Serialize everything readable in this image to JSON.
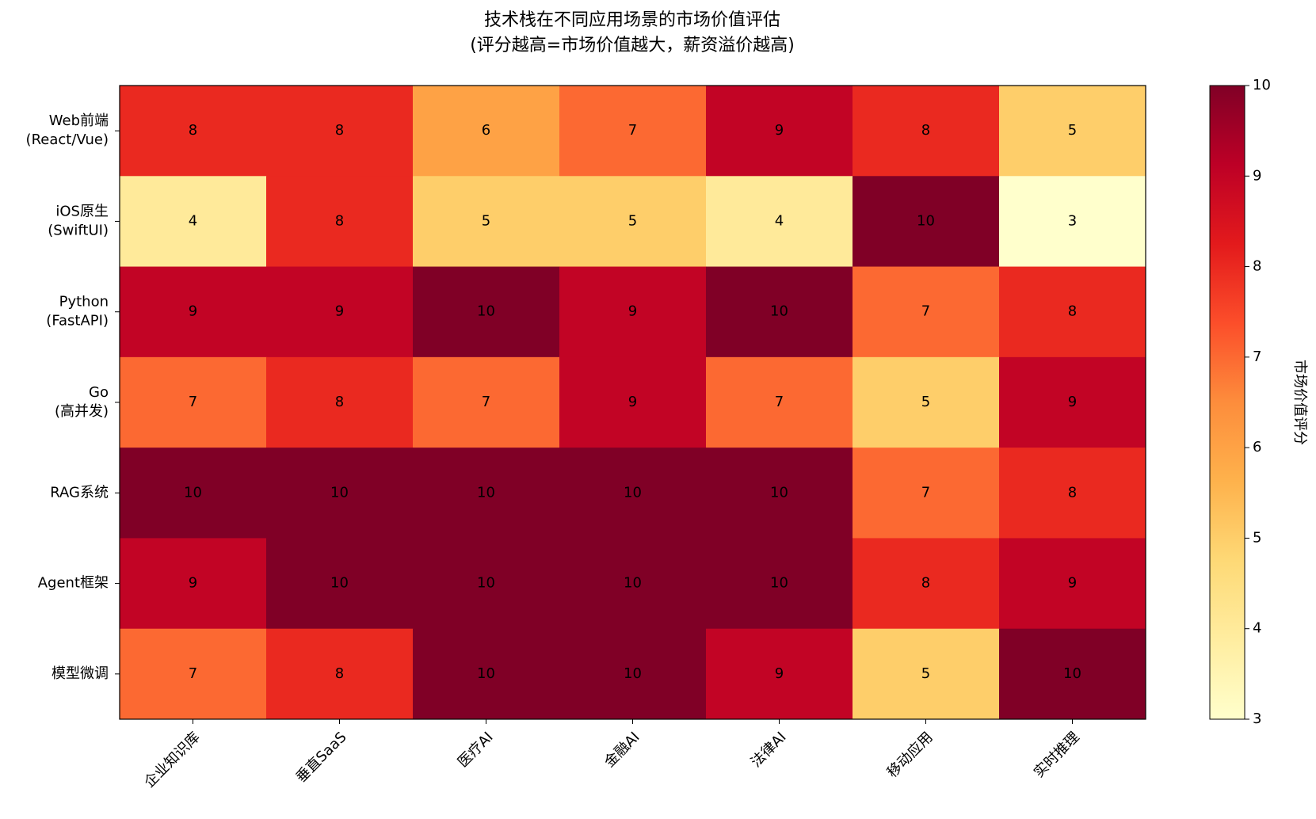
{
  "chart_data": {
    "type": "heatmap",
    "title": "技术栈在不同应用场景的市场价值评估",
    "subtitle": "(评分越高=市场价值越大，薪资溢价越高)",
    "x_categories": [
      "企业知识库",
      "垂直SaaS",
      "医疗AI",
      "金融AI",
      "法律AI",
      "移动应用",
      "实时推理"
    ],
    "y_categories": [
      [
        "Web前端",
        "(React/Vue)"
      ],
      [
        "iOS原生",
        "(SwiftUI)"
      ],
      [
        "Python",
        "(FastAPI)"
      ],
      [
        "Go",
        "(高并发)"
      ],
      [
        "RAG系统"
      ],
      [
        "Agent框架"
      ],
      [
        "模型微调"
      ]
    ],
    "values": [
      [
        8,
        8,
        6,
        7,
        9,
        8,
        5
      ],
      [
        4,
        8,
        5,
        5,
        4,
        10,
        3
      ],
      [
        9,
        9,
        10,
        9,
        10,
        7,
        8
      ],
      [
        7,
        8,
        7,
        9,
        7,
        5,
        9
      ],
      [
        10,
        10,
        10,
        10,
        10,
        7,
        8
      ],
      [
        9,
        10,
        10,
        10,
        10,
        8,
        9
      ],
      [
        7,
        8,
        10,
        10,
        9,
        5,
        10
      ]
    ],
    "colormap": "YlOrRd",
    "clim": [
      3,
      10
    ],
    "cticks": [
      3,
      4,
      5,
      6,
      7,
      8,
      9,
      10
    ],
    "colorbar_label": "市场价值评分"
  }
}
